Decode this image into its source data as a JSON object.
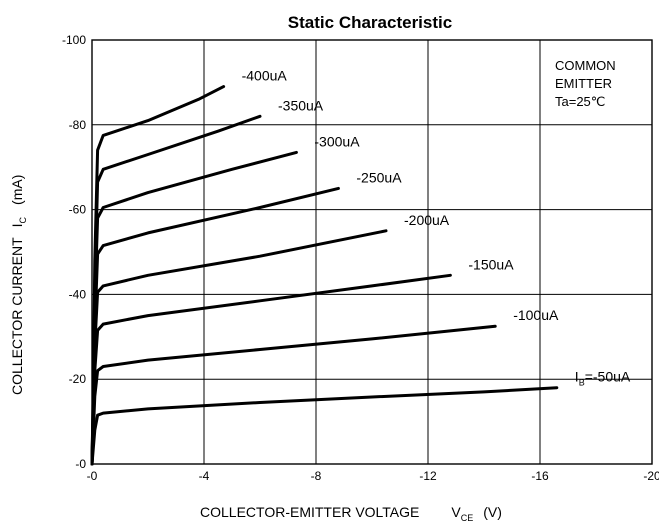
{
  "chart_data": {
    "type": "line",
    "title": "Static Characteristic",
    "xlabel": "COLLECTOR-EMITTER VOLTAGE",
    "xlabel_symbol": "V",
    "xlabel_subscript": "CE",
    "xlabel_unit": "(V)",
    "ylabel": "COLLECTOR CURRENT",
    "ylabel_symbol": "I",
    "ylabel_subscript": "C",
    "ylabel_unit": "(mA)",
    "xlim": [
      0,
      -20
    ],
    "ylim": [
      0,
      -100
    ],
    "x_ticks": [
      0,
      -4,
      -8,
      -12,
      -16,
      -20
    ],
    "x_tick_labels": [
      "-0",
      "-4",
      "-8",
      "-12",
      "-16",
      "-20"
    ],
    "y_ticks": [
      0,
      -20,
      -40,
      -60,
      -80,
      -100
    ],
    "y_tick_labels": [
      "-0",
      "-20",
      "-40",
      "-60",
      "-80",
      "-100"
    ],
    "grid": true,
    "annotation_lines": [
      "COMMON",
      "EMITTER",
      "Ta=25℃"
    ],
    "series": [
      {
        "name": "-50uA",
        "label_prefix": "I",
        "label_subscript": "B",
        "label_main": "=-50uA",
        "x": [
          0,
          -0.05,
          -0.1,
          -0.2,
          -0.4,
          -2,
          -6,
          -10,
          -14,
          -16.6
        ],
        "y": [
          0,
          -4,
          -8,
          -11.5,
          -12,
          -13,
          -14.5,
          -15.8,
          -17,
          -18
        ]
      },
      {
        "name": "-100uA",
        "label_prefix": "",
        "label_subscript": "",
        "label_main": "-100uA",
        "x": [
          0,
          -0.05,
          -0.1,
          -0.2,
          -0.4,
          -2,
          -6,
          -10,
          -14.4
        ],
        "y": [
          0,
          -8,
          -16,
          -22,
          -23,
          -24.5,
          -27,
          -29.5,
          -32.5
        ]
      },
      {
        "name": "-150uA",
        "label_prefix": "",
        "label_subscript": "",
        "label_main": "-150uA",
        "x": [
          0,
          -0.05,
          -0.1,
          -0.2,
          -0.4,
          -2,
          -6,
          -10,
          -12.8
        ],
        "y": [
          0,
          -10,
          -22,
          -31.5,
          -33,
          -35,
          -38.5,
          -42,
          -44.5
        ]
      },
      {
        "name": "-200uA",
        "label_prefix": "",
        "label_subscript": "",
        "label_main": "-200uA",
        "x": [
          0,
          -0.05,
          -0.1,
          -0.2,
          -0.4,
          -2,
          -6,
          -10.5
        ],
        "y": [
          0,
          -12,
          -28,
          -40.5,
          -42,
          -44.5,
          -49,
          -55
        ]
      },
      {
        "name": "-250uA",
        "label_prefix": "",
        "label_subscript": "",
        "label_main": "-250uA",
        "x": [
          0,
          -0.05,
          -0.1,
          -0.2,
          -0.4,
          -2,
          -6,
          -8.8
        ],
        "y": [
          0,
          -14,
          -32,
          -49.5,
          -51.5,
          -54.5,
          -60.5,
          -65
        ]
      },
      {
        "name": "-300uA",
        "label_prefix": "",
        "label_subscript": "",
        "label_main": "-300uA",
        "x": [
          0,
          -0.05,
          -0.1,
          -0.2,
          -0.4,
          -2,
          -5,
          -7.3
        ],
        "y": [
          0,
          -16,
          -38,
          -58,
          -60.5,
          -64,
          -69.5,
          -73.5
        ]
      },
      {
        "name": "-350uA",
        "label_prefix": "",
        "label_subscript": "",
        "label_main": "-350uA",
        "x": [
          0,
          -0.05,
          -0.1,
          -0.2,
          -0.4,
          -2,
          -4.5,
          -6
        ],
        "y": [
          0,
          -18,
          -42,
          -66.5,
          -69.5,
          -73,
          -78.5,
          -82
        ]
      },
      {
        "name": "-400uA",
        "label_prefix": "",
        "label_subscript": "",
        "label_main": "-400uA",
        "x": [
          0,
          -0.05,
          -0.1,
          -0.2,
          -0.4,
          -2,
          -3.8,
          -4.7
        ],
        "y": [
          0,
          -20,
          -48,
          -74,
          -77.5,
          -81,
          -86,
          -89
        ]
      }
    ]
  }
}
